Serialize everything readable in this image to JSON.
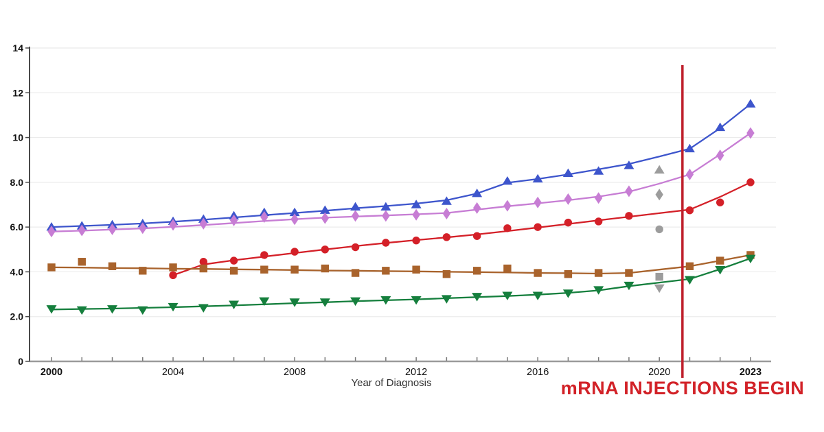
{
  "page": {
    "background": "#ffffff"
  },
  "annotation": {
    "label": "mRNA INJECTIONS BEGIN",
    "text_color": "#d22127",
    "line_color": "#bf202c",
    "line_x": 2020.76
  },
  "chart_data": {
    "type": "line",
    "title": "",
    "xlabel": "Year of Diagnosis",
    "ylabel": "",
    "ylim": [
      0,
      14
    ],
    "xlim": [
      2000,
      2023
    ],
    "grid": true,
    "legend": false,
    "x": [
      2000,
      2001,
      2002,
      2003,
      2004,
      2005,
      2006,
      2007,
      2008,
      2009,
      2010,
      2011,
      2012,
      2013,
      2014,
      2015,
      2016,
      2017,
      2018,
      2019,
      2020,
      2021,
      2022,
      2023
    ],
    "y_ticks": [
      {
        "label": "0",
        "value": 0
      },
      {
        "label": "2.0",
        "value": 2
      },
      {
        "label": "4.0",
        "value": 4
      },
      {
        "label": "6.0",
        "value": 6
      },
      {
        "label": "8.0",
        "value": 8
      },
      {
        "label": "10",
        "value": 10
      },
      {
        "label": "12",
        "value": 12
      },
      {
        "label": "14",
        "value": 14
      }
    ],
    "x_ticks": [
      {
        "label": "2000",
        "value": 2000,
        "bold": true
      },
      {
        "label": "2004",
        "value": 2004,
        "bold": false
      },
      {
        "label": "2008",
        "value": 2008,
        "bold": false
      },
      {
        "label": "2012",
        "value": 2012,
        "bold": false
      },
      {
        "label": "2016",
        "value": 2016,
        "bold": false
      },
      {
        "label": "2020",
        "value": 2020,
        "bold": false
      },
      {
        "label": "2023",
        "value": 2023,
        "bold": true
      }
    ],
    "series": [
      {
        "name": "blue-triangle-up",
        "marker": "triangle-up",
        "color": "#3d55cc",
        "values": [
          6.0,
          6.05,
          6.1,
          6.15,
          6.25,
          6.35,
          6.5,
          6.65,
          6.65,
          6.75,
          6.9,
          6.9,
          7.0,
          7.15,
          7.5,
          8.05,
          8.15,
          8.4,
          8.5,
          8.75,
          null,
          9.5,
          10.45,
          11.5
        ],
        "trend": [
          6.0,
          6.05,
          6.1,
          6.16,
          6.24,
          6.33,
          6.43,
          6.53,
          6.63,
          6.73,
          6.84,
          6.94,
          7.05,
          7.2,
          7.5,
          7.98,
          8.15,
          8.35,
          8.58,
          8.82,
          9.15,
          9.5,
          10.42,
          11.5
        ]
      },
      {
        "name": "purple-diamond",
        "marker": "diamond",
        "color": "#c77dd4",
        "values": [
          5.8,
          5.85,
          5.9,
          5.95,
          6.1,
          6.15,
          6.3,
          6.45,
          6.35,
          6.4,
          6.5,
          6.5,
          6.55,
          6.6,
          6.85,
          6.95,
          7.1,
          7.25,
          7.3,
          7.6,
          null,
          8.35,
          9.2,
          10.2
        ],
        "trend": [
          5.8,
          5.84,
          5.89,
          5.94,
          6.01,
          6.09,
          6.18,
          6.27,
          6.35,
          6.42,
          6.47,
          6.52,
          6.57,
          6.63,
          6.78,
          6.93,
          7.06,
          7.2,
          7.36,
          7.58,
          7.94,
          8.35,
          9.25,
          10.2
        ]
      },
      {
        "name": "red-circle",
        "marker": "circle",
        "color": "#d42028",
        "values": [
          null,
          null,
          null,
          null,
          3.85,
          4.45,
          4.5,
          4.75,
          4.9,
          5.0,
          5.1,
          5.3,
          5.4,
          5.55,
          5.6,
          5.95,
          6.0,
          6.2,
          6.25,
          6.5,
          null,
          6.75,
          7.1,
          8.0
        ],
        "trend": [
          null,
          null,
          null,
          null,
          3.85,
          4.33,
          4.52,
          4.68,
          4.84,
          5.0,
          5.15,
          5.29,
          5.42,
          5.54,
          5.67,
          5.82,
          5.98,
          6.14,
          6.3,
          6.46,
          6.62,
          6.78,
          7.35,
          8.0
        ]
      },
      {
        "name": "brown-square",
        "marker": "square",
        "color": "#a9632c",
        "values": [
          4.2,
          4.45,
          4.25,
          4.05,
          4.2,
          4.15,
          4.05,
          4.1,
          4.1,
          4.15,
          3.95,
          4.05,
          4.1,
          3.9,
          4.05,
          4.15,
          3.95,
          3.9,
          3.95,
          3.95,
          null,
          4.25,
          4.5,
          4.75
        ],
        "trend": [
          4.2,
          4.19,
          4.17,
          4.16,
          4.14,
          4.13,
          4.11,
          4.1,
          4.08,
          4.06,
          4.05,
          4.03,
          4.02,
          4.0,
          3.99,
          3.97,
          3.95,
          3.94,
          3.92,
          3.95,
          4.1,
          4.25,
          4.5,
          4.75
        ]
      },
      {
        "name": "green-triangle-down",
        "marker": "triangle-down",
        "color": "#157f3d",
        "values": [
          2.35,
          2.3,
          2.35,
          2.3,
          2.45,
          2.4,
          2.55,
          2.7,
          2.65,
          2.65,
          2.7,
          2.75,
          2.75,
          2.8,
          2.9,
          2.95,
          2.95,
          3.05,
          3.2,
          3.4,
          null,
          3.65,
          4.1,
          4.6
        ],
        "trend": [
          2.32,
          2.34,
          2.36,
          2.39,
          2.42,
          2.46,
          2.5,
          2.55,
          2.6,
          2.64,
          2.69,
          2.73,
          2.77,
          2.82,
          2.87,
          2.92,
          2.98,
          3.06,
          3.17,
          3.36,
          3.52,
          3.68,
          4.12,
          4.6
        ]
      }
    ],
    "excluded_2020_points": {
      "x": 2020,
      "color": "#9c9c9c",
      "points": [
        {
          "marker": "triangle-up",
          "value": 8.55
        },
        {
          "marker": "diamond",
          "value": 7.45
        },
        {
          "marker": "circle",
          "value": 5.9
        },
        {
          "marker": "square",
          "value": 3.78
        },
        {
          "marker": "triangle-down",
          "value": 3.28
        }
      ]
    }
  }
}
